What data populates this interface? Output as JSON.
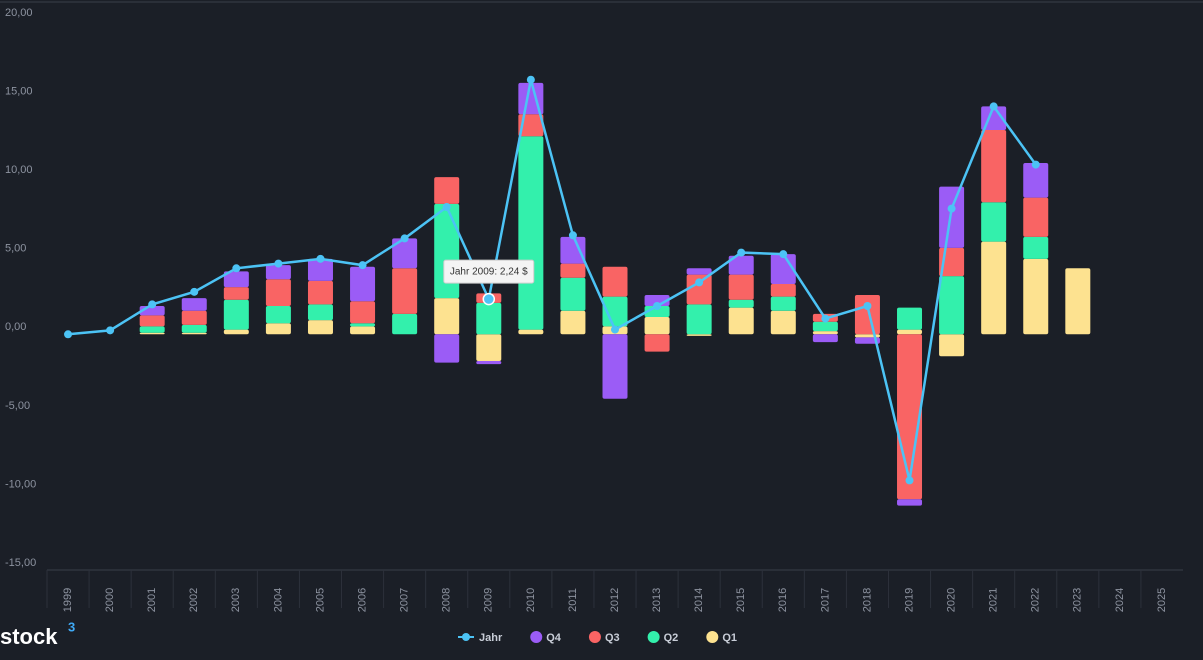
{
  "chart_data": {
    "type": "stacked-bar-line",
    "categories": [
      "1999",
      "2000",
      "2001",
      "2002",
      "2003",
      "2004",
      "2005",
      "2006",
      "2007",
      "2008",
      "2009",
      "2010",
      "2011",
      "2012",
      "2013",
      "2014",
      "2015",
      "2016",
      "2017",
      "2018",
      "2019",
      "2020",
      "2021",
      "2022",
      "2023",
      "2024",
      "2025"
    ],
    "series": [
      {
        "name": "Jahr",
        "type": "line",
        "color": "#4cc3f5",
        "values": [
          0,
          0.25,
          1.9,
          2.7,
          4.2,
          4.5,
          4.8,
          4.4,
          6.1,
          8.1,
          2.24,
          16.2,
          6.3,
          0.3,
          1.8,
          3.3,
          5.2,
          5.1,
          1.0,
          1.8,
          -9.3,
          8.0,
          14.5,
          10.8,
          null,
          null,
          null
        ]
      },
      {
        "name": "Q4",
        "type": "bar",
        "color": "#9b5cf6",
        "values": [
          null,
          null,
          0.6,
          0.8,
          1.0,
          0.9,
          1.4,
          2.2,
          1.9,
          -1.8,
          -0.2,
          2.0,
          1.7,
          -4.1,
          0.7,
          0.4,
          1.2,
          1.9,
          -0.5,
          -0.4,
          -0.4,
          3.9,
          1.5,
          2.2,
          null,
          null,
          null
        ]
      },
      {
        "name": "Q3",
        "type": "bar",
        "color": "#f96464",
        "values": [
          null,
          null,
          0.7,
          0.9,
          0.8,
          1.7,
          1.5,
          1.4,
          2.9,
          1.7,
          0.6,
          1.4,
          0.9,
          1.9,
          -1.1,
          1.9,
          1.6,
          0.8,
          0.5,
          2.5,
          -10.5,
          1.8,
          4.6,
          2.5,
          null,
          null,
          null
        ]
      },
      {
        "name": "Q2",
        "type": "bar",
        "color": "#33f0ac",
        "values": [
          null,
          null,
          0.4,
          0.5,
          1.9,
          1.1,
          1.0,
          0.2,
          1.3,
          6.0,
          2.0,
          12.3,
          2.1,
          1.9,
          0.7,
          1.9,
          0.5,
          0.9,
          0.6,
          null,
          1.4,
          3.7,
          2.5,
          1.4,
          null,
          null,
          null
        ]
      },
      {
        "name": "Q1",
        "type": "bar",
        "color": "#fde290",
        "values": [
          null,
          null,
          0.1,
          0.1,
          0.3,
          0.7,
          0.9,
          0.5,
          null,
          2.3,
          -1.7,
          0.3,
          1.5,
          0.5,
          1.1,
          -0.1,
          1.7,
          1.5,
          0.2,
          -0.2,
          0.3,
          -1.4,
          5.9,
          4.8,
          4.2,
          null,
          null
        ]
      }
    ],
    "ylim": [
      -15,
      20
    ],
    "yticks": [
      {
        "value": -15,
        "label": "-15,00"
      },
      {
        "value": -10,
        "label": "-10,00"
      },
      {
        "value": -5,
        "label": "-5,00"
      },
      {
        "value": 0,
        "label": "0,00"
      },
      {
        "value": 5,
        "label": "5,00"
      },
      {
        "value": 10,
        "label": "10,00"
      },
      {
        "value": 15,
        "label": "15,00"
      },
      {
        "value": 20,
        "label": "20,00"
      }
    ],
    "grid": false,
    "legend": "bottom",
    "tooltip": {
      "category": 10,
      "text": "Jahr 2009: 2,24 $"
    }
  },
  "logo": {
    "text": "stock",
    "sup": "3"
  }
}
